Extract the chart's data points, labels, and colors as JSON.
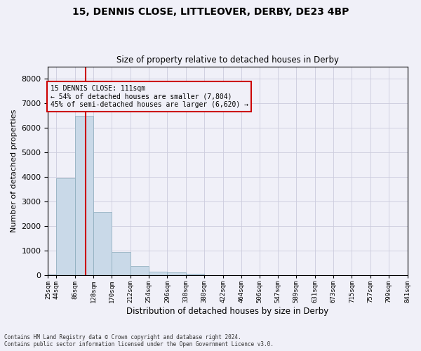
{
  "title1": "15, DENNIS CLOSE, LITTLEOVER, DERBY, DE23 4BP",
  "title2": "Size of property relative to detached houses in Derby",
  "xlabel": "Distribution of detached houses by size in Derby",
  "ylabel": "Number of detached properties",
  "footer1": "Contains HM Land Registry data © Crown copyright and database right 2024.",
  "footer2": "Contains public sector information licensed under the Open Government Licence v3.0.",
  "annotation_title": "15 DENNIS CLOSE: 111sqm",
  "annotation_line1": "← 54% of detached houses are smaller (7,804)",
  "annotation_line2": "45% of semi-detached houses are larger (6,620) →",
  "property_size": 111,
  "bar_color": "#c9d9e8",
  "bar_edge_color": "#8aaabb",
  "line_color": "#cc0000",
  "background_color": "#f0f0f8",
  "grid_color": "#ccccdd",
  "bin_edges": [
    25,
    44,
    86,
    128,
    170,
    212,
    254,
    296,
    338,
    380,
    422,
    464,
    506,
    547,
    589,
    631,
    673,
    715,
    757,
    799,
    841
  ],
  "bin_labels": [
    "25sqm",
    "44sqm",
    "86sqm",
    "128sqm",
    "170sqm",
    "212sqm",
    "254sqm",
    "296sqm",
    "338sqm",
    "380sqm",
    "422sqm",
    "464sqm",
    "506sqm",
    "547sqm",
    "589sqm",
    "631sqm",
    "673sqm",
    "715sqm",
    "757sqm",
    "799sqm",
    "841sqm"
  ],
  "counts": [
    40,
    3950,
    6500,
    2580,
    940,
    370,
    140,
    115,
    65,
    0,
    0,
    0,
    0,
    0,
    0,
    0,
    0,
    0,
    0,
    0
  ],
  "ylim": [
    0,
    8500
  ],
  "yticks": [
    0,
    1000,
    2000,
    3000,
    4000,
    5000,
    6000,
    7000,
    8000
  ]
}
